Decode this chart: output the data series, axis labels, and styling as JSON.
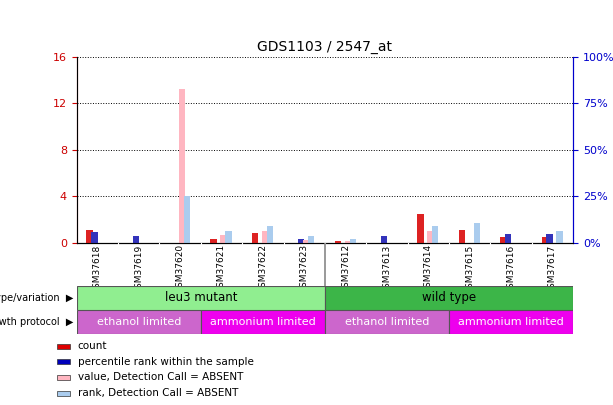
{
  "title": "GDS1103 / 2547_at",
  "samples": [
    "GSM37618",
    "GSM37619",
    "GSM37620",
    "GSM37621",
    "GSM37622",
    "GSM37623",
    "GSM37612",
    "GSM37613",
    "GSM37614",
    "GSM37615",
    "GSM37616",
    "GSM37617"
  ],
  "count_red": [
    1.1,
    0.0,
    0.0,
    0.35,
    0.85,
    0.0,
    0.15,
    0.0,
    2.5,
    1.1,
    0.5,
    0.5
  ],
  "rank_blue_pct": [
    6.0,
    4.0,
    0.0,
    0.0,
    0.0,
    2.0,
    0.0,
    4.0,
    0.0,
    0.0,
    5.0,
    5.0
  ],
  "value_pink": [
    0.0,
    0.0,
    13.2,
    0.7,
    1.0,
    0.3,
    0.2,
    0.0,
    1.0,
    0.0,
    0.0,
    0.0
  ],
  "rank_lb_pct": [
    0.0,
    0.0,
    25.0,
    6.5,
    9.0,
    3.5,
    2.0,
    0.0,
    9.0,
    11.0,
    0.0,
    6.5
  ],
  "ylim_left": [
    0,
    16
  ],
  "ylim_right": [
    0,
    100
  ],
  "yticks_left": [
    0,
    4,
    8,
    12,
    16
  ],
  "yticks_right": [
    0,
    25,
    50,
    75,
    100
  ],
  "ytick_labels_right": [
    "0%",
    "25%",
    "50%",
    "75%",
    "100%"
  ],
  "genotype_groups": [
    {
      "label": "leu3 mutant",
      "start": 0,
      "end": 6,
      "color": "#90EE90"
    },
    {
      "label": "wild type",
      "start": 6,
      "end": 12,
      "color": "#3CB548"
    }
  ],
  "growth_groups": [
    {
      "label": "ethanol limited",
      "start": 0,
      "end": 3,
      "color": "#CC66CC"
    },
    {
      "label": "ammonium limited",
      "start": 3,
      "end": 6,
      "color": "#EE00EE"
    },
    {
      "label": "ethanol limited",
      "start": 6,
      "end": 9,
      "color": "#CC66CC"
    },
    {
      "label": "ammonium limited",
      "start": 9,
      "end": 12,
      "color": "#EE00EE"
    }
  ],
  "bar_width": 0.15,
  "legend_items": [
    {
      "label": "count",
      "color": "#DD0000"
    },
    {
      "label": "percentile rank within the sample",
      "color": "#0000BB"
    },
    {
      "label": "value, Detection Call = ABSENT",
      "color": "#FFB6C1"
    },
    {
      "label": "rank, Detection Call = ABSENT",
      "color": "#AACCEE"
    }
  ],
  "left_axis_color": "#CC0000",
  "right_axis_color": "#0000CC",
  "sample_area_bg": "#CCCCCC"
}
